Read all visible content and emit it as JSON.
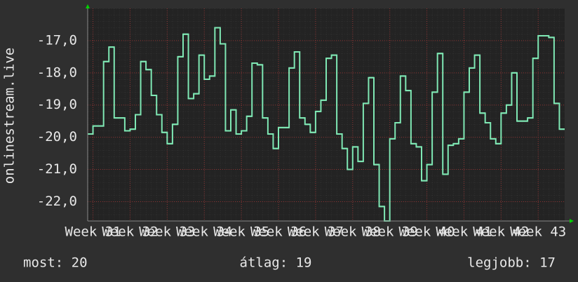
{
  "chart_data": {
    "type": "step",
    "ylabel": "onlinestream.live",
    "series": [
      {
        "name": "onlinestream.live",
        "color": "#7fe8b4",
        "values": [
          -19.9,
          -19.65,
          -19.65,
          -17.65,
          -17.2,
          -19.4,
          -19.4,
          -19.8,
          -19.75,
          -19.3,
          -17.65,
          -17.9,
          -18.7,
          -19.3,
          -19.85,
          -20.2,
          -19.6,
          -17.5,
          -16.8,
          -18.8,
          -18.65,
          -17.45,
          -18.2,
          -18.1,
          -16.6,
          -17.1,
          -19.8,
          -19.15,
          -19.9,
          -19.8,
          -19.35,
          -17.7,
          -17.75,
          -19.4,
          -19.9,
          -20.35,
          -19.7,
          -19.7,
          -17.85,
          -17.35,
          -19.4,
          -19.6,
          -19.85,
          -19.2,
          -18.85,
          -17.55,
          -17.45,
          -19.9,
          -20.35,
          -21.0,
          -20.3,
          -20.75,
          -18.95,
          -18.15,
          -20.85,
          -22.15,
          -22.6,
          -20.05,
          -19.55,
          -18.1,
          -18.55,
          -20.2,
          -20.3,
          -21.35,
          -20.85,
          -18.6,
          -17.4,
          -21.15,
          -20.25,
          -20.2,
          -20.05,
          -18.6,
          -17.85,
          -17.45,
          -19.25,
          -19.55,
          -20.05,
          -20.2,
          -19.25,
          -19.0,
          -18.0,
          -19.5,
          -19.5,
          -19.4,
          -17.55,
          -16.85,
          -16.85,
          -16.9,
          -18.95,
          -19.75
        ]
      }
    ],
    "xlim": [
      0,
      90
    ],
    "xticks": [
      {
        "value": 1,
        "label": "Week 31"
      },
      {
        "value": 8,
        "label": "Week 32"
      },
      {
        "value": 15,
        "label": "Week 33"
      },
      {
        "value": 22,
        "label": "Week 34"
      },
      {
        "value": 29,
        "label": "Week 35"
      },
      {
        "value": 36,
        "label": "Week 36"
      },
      {
        "value": 43,
        "label": "Week 37"
      },
      {
        "value": 50,
        "label": "Week 38"
      },
      {
        "value": 57,
        "label": "Week 39"
      },
      {
        "value": 64,
        "label": "Week 40"
      },
      {
        "value": 71,
        "label": "Week 41"
      },
      {
        "value": 78,
        "label": "Week 42"
      },
      {
        "value": 85,
        "label": "Week 43"
      }
    ],
    "ylim": [
      -22.6,
      -16.0
    ],
    "yticks": [
      {
        "value": -17,
        "label": "-17,0"
      },
      {
        "value": -18,
        "label": "-18,0"
      },
      {
        "value": -19,
        "label": "-19,0"
      },
      {
        "value": -20,
        "label": "-20,0"
      },
      {
        "value": -21,
        "label": "-21,0"
      },
      {
        "value": -22,
        "label": "-22,0"
      }
    ],
    "grid": true,
    "annotations": [
      "most: 20",
      "átlag: 19",
      "legjobb: 17"
    ]
  }
}
